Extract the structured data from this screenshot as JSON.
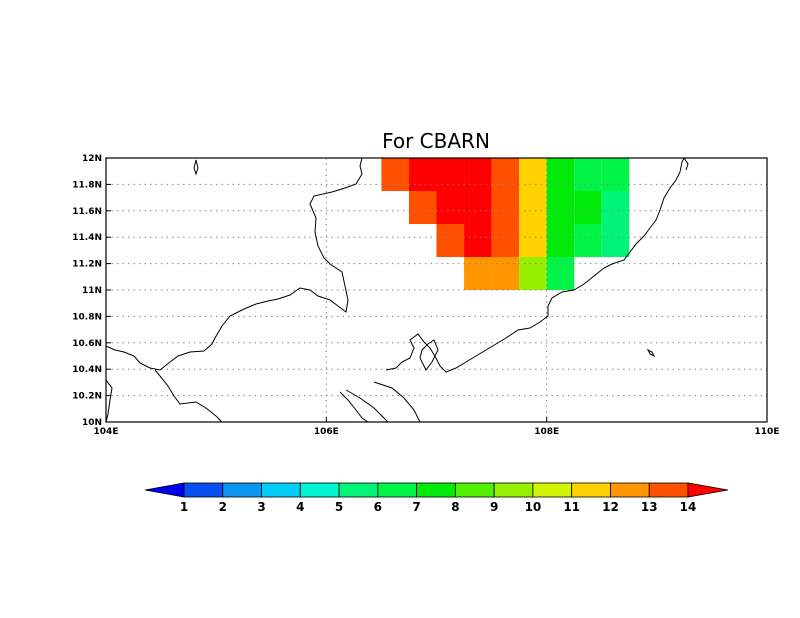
{
  "title": "For CBARN",
  "map": {
    "lon_range": [
      104,
      110
    ],
    "lat_range": [
      10,
      12
    ],
    "x_ticks": [
      {
        "value": 104,
        "label": "104E"
      },
      {
        "value": 106,
        "label": "106E"
      },
      {
        "value": 108,
        "label": "108E"
      },
      {
        "value": 110,
        "label": "110E"
      }
    ],
    "y_ticks": [
      {
        "value": 10.0,
        "label": "10N"
      },
      {
        "value": 10.2,
        "label": "10.2N"
      },
      {
        "value": 10.4,
        "label": "10.4N"
      },
      {
        "value": 10.6,
        "label": "10.6N"
      },
      {
        "value": 10.8,
        "label": "10.8N"
      },
      {
        "value": 11.0,
        "label": "11N"
      },
      {
        "value": 11.2,
        "label": "11.2N"
      },
      {
        "value": 11.4,
        "label": "11.4N"
      },
      {
        "value": 11.6,
        "label": "11.6N"
      },
      {
        "value": 11.8,
        "label": "11.8N"
      },
      {
        "value": 12.0,
        "label": "12N"
      }
    ],
    "grid_lines": "dotted",
    "cell_size_deg": 0.25
  },
  "chart_data": {
    "type": "heatmap",
    "title": "For CBARN",
    "xlabel": "",
    "ylabel": "",
    "xlim": [
      104,
      110
    ],
    "ylim": [
      10,
      12
    ],
    "cells": [
      {
        "lon": 106.5,
        "lat": 11.75,
        "value": 13
      },
      {
        "lon": 106.75,
        "lat": 11.75,
        "value": 14
      },
      {
        "lon": 107.0,
        "lat": 11.75,
        "value": 14
      },
      {
        "lon": 107.25,
        "lat": 11.75,
        "value": 14
      },
      {
        "lon": 107.5,
        "lat": 11.75,
        "value": 13
      },
      {
        "lon": 107.75,
        "lat": 11.75,
        "value": 11
      },
      {
        "lon": 108.0,
        "lat": 11.75,
        "value": 7
      },
      {
        "lon": 108.25,
        "lat": 11.75,
        "value": 6
      },
      {
        "lon": 108.5,
        "lat": 11.75,
        "value": 6
      },
      {
        "lon": 106.75,
        "lat": 11.5,
        "value": 13
      },
      {
        "lon": 107.0,
        "lat": 11.5,
        "value": 14
      },
      {
        "lon": 107.25,
        "lat": 11.5,
        "value": 14
      },
      {
        "lon": 107.5,
        "lat": 11.5,
        "value": 13
      },
      {
        "lon": 107.75,
        "lat": 11.5,
        "value": 11
      },
      {
        "lon": 108.0,
        "lat": 11.5,
        "value": 7
      },
      {
        "lon": 108.25,
        "lat": 11.5,
        "value": 7
      },
      {
        "lon": 108.5,
        "lat": 11.5,
        "value": 5
      },
      {
        "lon": 107.0,
        "lat": 11.25,
        "value": 13
      },
      {
        "lon": 107.25,
        "lat": 11.25,
        "value": 14
      },
      {
        "lon": 107.5,
        "lat": 11.25,
        "value": 13
      },
      {
        "lon": 107.75,
        "lat": 11.25,
        "value": 11
      },
      {
        "lon": 108.0,
        "lat": 11.25,
        "value": 7
      },
      {
        "lon": 108.25,
        "lat": 11.25,
        "value": 6
      },
      {
        "lon": 108.5,
        "lat": 11.25,
        "value": 5
      },
      {
        "lon": 107.25,
        "lat": 11.0,
        "value": 12
      },
      {
        "lon": 107.5,
        "lat": 11.0,
        "value": 12
      },
      {
        "lon": 107.75,
        "lat": 11.0,
        "value": 9
      },
      {
        "lon": 108.0,
        "lat": 11.0,
        "value": 6
      }
    ]
  },
  "colorbar": {
    "labels": [
      "1",
      "2",
      "3",
      "4",
      "5",
      "6",
      "7",
      "8",
      "9",
      "10",
      "11",
      "12",
      "13",
      "14"
    ],
    "colors": [
      "#0000f0",
      "#0a50f0",
      "#0a96f0",
      "#00cdf5",
      "#00f5d2",
      "#00f578",
      "#00f546",
      "#00eb0a",
      "#50f000",
      "#96f000",
      "#d2f500",
      "#ffd200",
      "#ff9600",
      "#ff5000",
      "#ff0000"
    ]
  }
}
